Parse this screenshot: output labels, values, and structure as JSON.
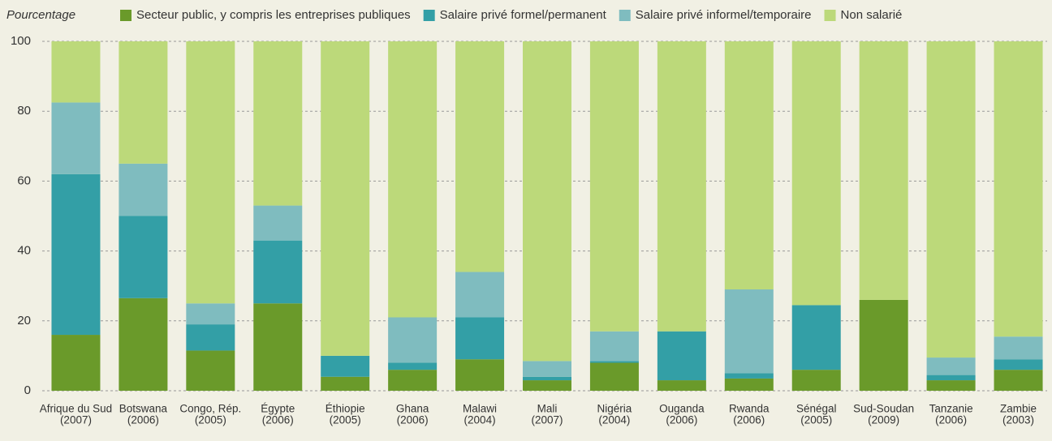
{
  "chart_data": {
    "type": "stacked_bar",
    "y_label": "Pourcentage",
    "categories": [
      [
        "Afrique du Sud",
        "(2007)"
      ],
      [
        "Botswana",
        "(2006)"
      ],
      [
        "Congo, Rép.",
        "(2005)"
      ],
      [
        "Égypte",
        "(2006)"
      ],
      [
        "Éthiopie",
        "(2005)"
      ],
      [
        "Ghana",
        "(2006)"
      ],
      [
        "Malawi",
        "(2004)"
      ],
      [
        "Mali",
        "(2007)"
      ],
      [
        "Nigéria",
        "(2004)"
      ],
      [
        "Ouganda",
        "(2006)"
      ],
      [
        "Rwanda",
        "(2006)"
      ],
      [
        "Sénégal",
        "(2005)"
      ],
      [
        "Sud-Soudan",
        "(2009)"
      ],
      [
        "Tanzanie",
        "(2006)"
      ],
      [
        "Zambie",
        "(2003)"
      ]
    ],
    "series": [
      {
        "name": "Secteur public, y compris les entreprises publiques",
        "color": "#6a9a2a",
        "values": [
          16,
          26.5,
          11.5,
          25,
          4,
          6,
          9,
          3,
          8,
          3,
          3.5,
          6,
          26,
          3,
          6
        ]
      },
      {
        "name": "Salaire privé formel/permanent",
        "color": "#339fa6",
        "values": [
          46,
          23.5,
          7.5,
          18,
          6,
          2,
          12,
          1,
          0.5,
          14,
          1.5,
          18.5,
          0,
          1.5,
          3
        ]
      },
      {
        "name": "Salaire privé informel/temporaire",
        "color": "#7fbcbf",
        "values": [
          20.5,
          15,
          6,
          10,
          0,
          13,
          13,
          4.5,
          8.5,
          0,
          24,
          0,
          0,
          5,
          6.5
        ]
      },
      {
        "name": "Non salarié",
        "color": "#bcd97a",
        "values": [
          17.5,
          35,
          75,
          47,
          90,
          79,
          66,
          91.5,
          83,
          83,
          71,
          75.5,
          74,
          90.5,
          84.5
        ]
      }
    ],
    "ylim": [
      0,
      100
    ],
    "yticks": [
      0,
      20,
      40,
      60,
      80,
      100
    ],
    "grid": true
  }
}
